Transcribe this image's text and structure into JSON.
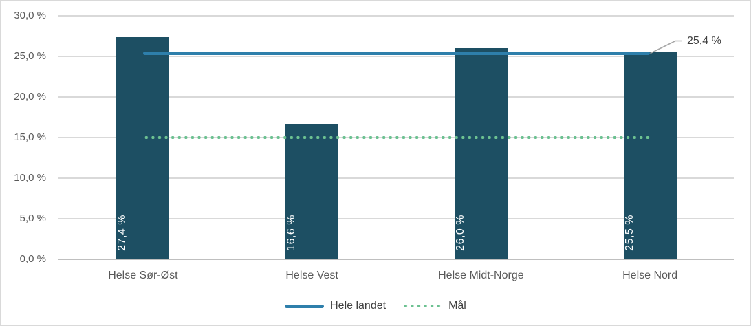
{
  "chart_data": {
    "type": "bar",
    "title": "",
    "xlabel": "",
    "ylabel": "",
    "categories": [
      "Helse Sør-Øst",
      "Helse Vest",
      "Helse Midt-Norge",
      "Helse Nord"
    ],
    "values": [
      27.4,
      16.6,
      26.0,
      25.5
    ],
    "bar_value_labels": [
      "27,4 %",
      "16,6 %",
      "26,0 %",
      "25,5 %"
    ],
    "bar_color": "#1d4f63",
    "bar_label_color": "#ffffff",
    "reference_lines": [
      {
        "name": "Hele landet",
        "value": 25.4,
        "style": "solid",
        "color": "#2e7fab",
        "annotation_label": "25,4 %"
      },
      {
        "name": "Mål",
        "value": 15.0,
        "style": "dotted",
        "color": "#6cc191",
        "annotation_label": ""
      }
    ],
    "ylim": [
      0,
      30
    ],
    "ytick_step": 5,
    "ytick_labels": [
      "0,0 %",
      "5,0 %",
      "10,0 %",
      "15,0 %",
      "20,0 %",
      "25,0 %",
      "30,0 %"
    ],
    "grid": true,
    "legend_position": "bottom"
  },
  "colors": {
    "gridline": "#d9d9d9",
    "axis_line": "#bfbfbf",
    "tick_text": "#595959",
    "annotation_text": "#404040",
    "frame_border": "#d9d9d9",
    "leader_line": "#a6a6a6"
  }
}
